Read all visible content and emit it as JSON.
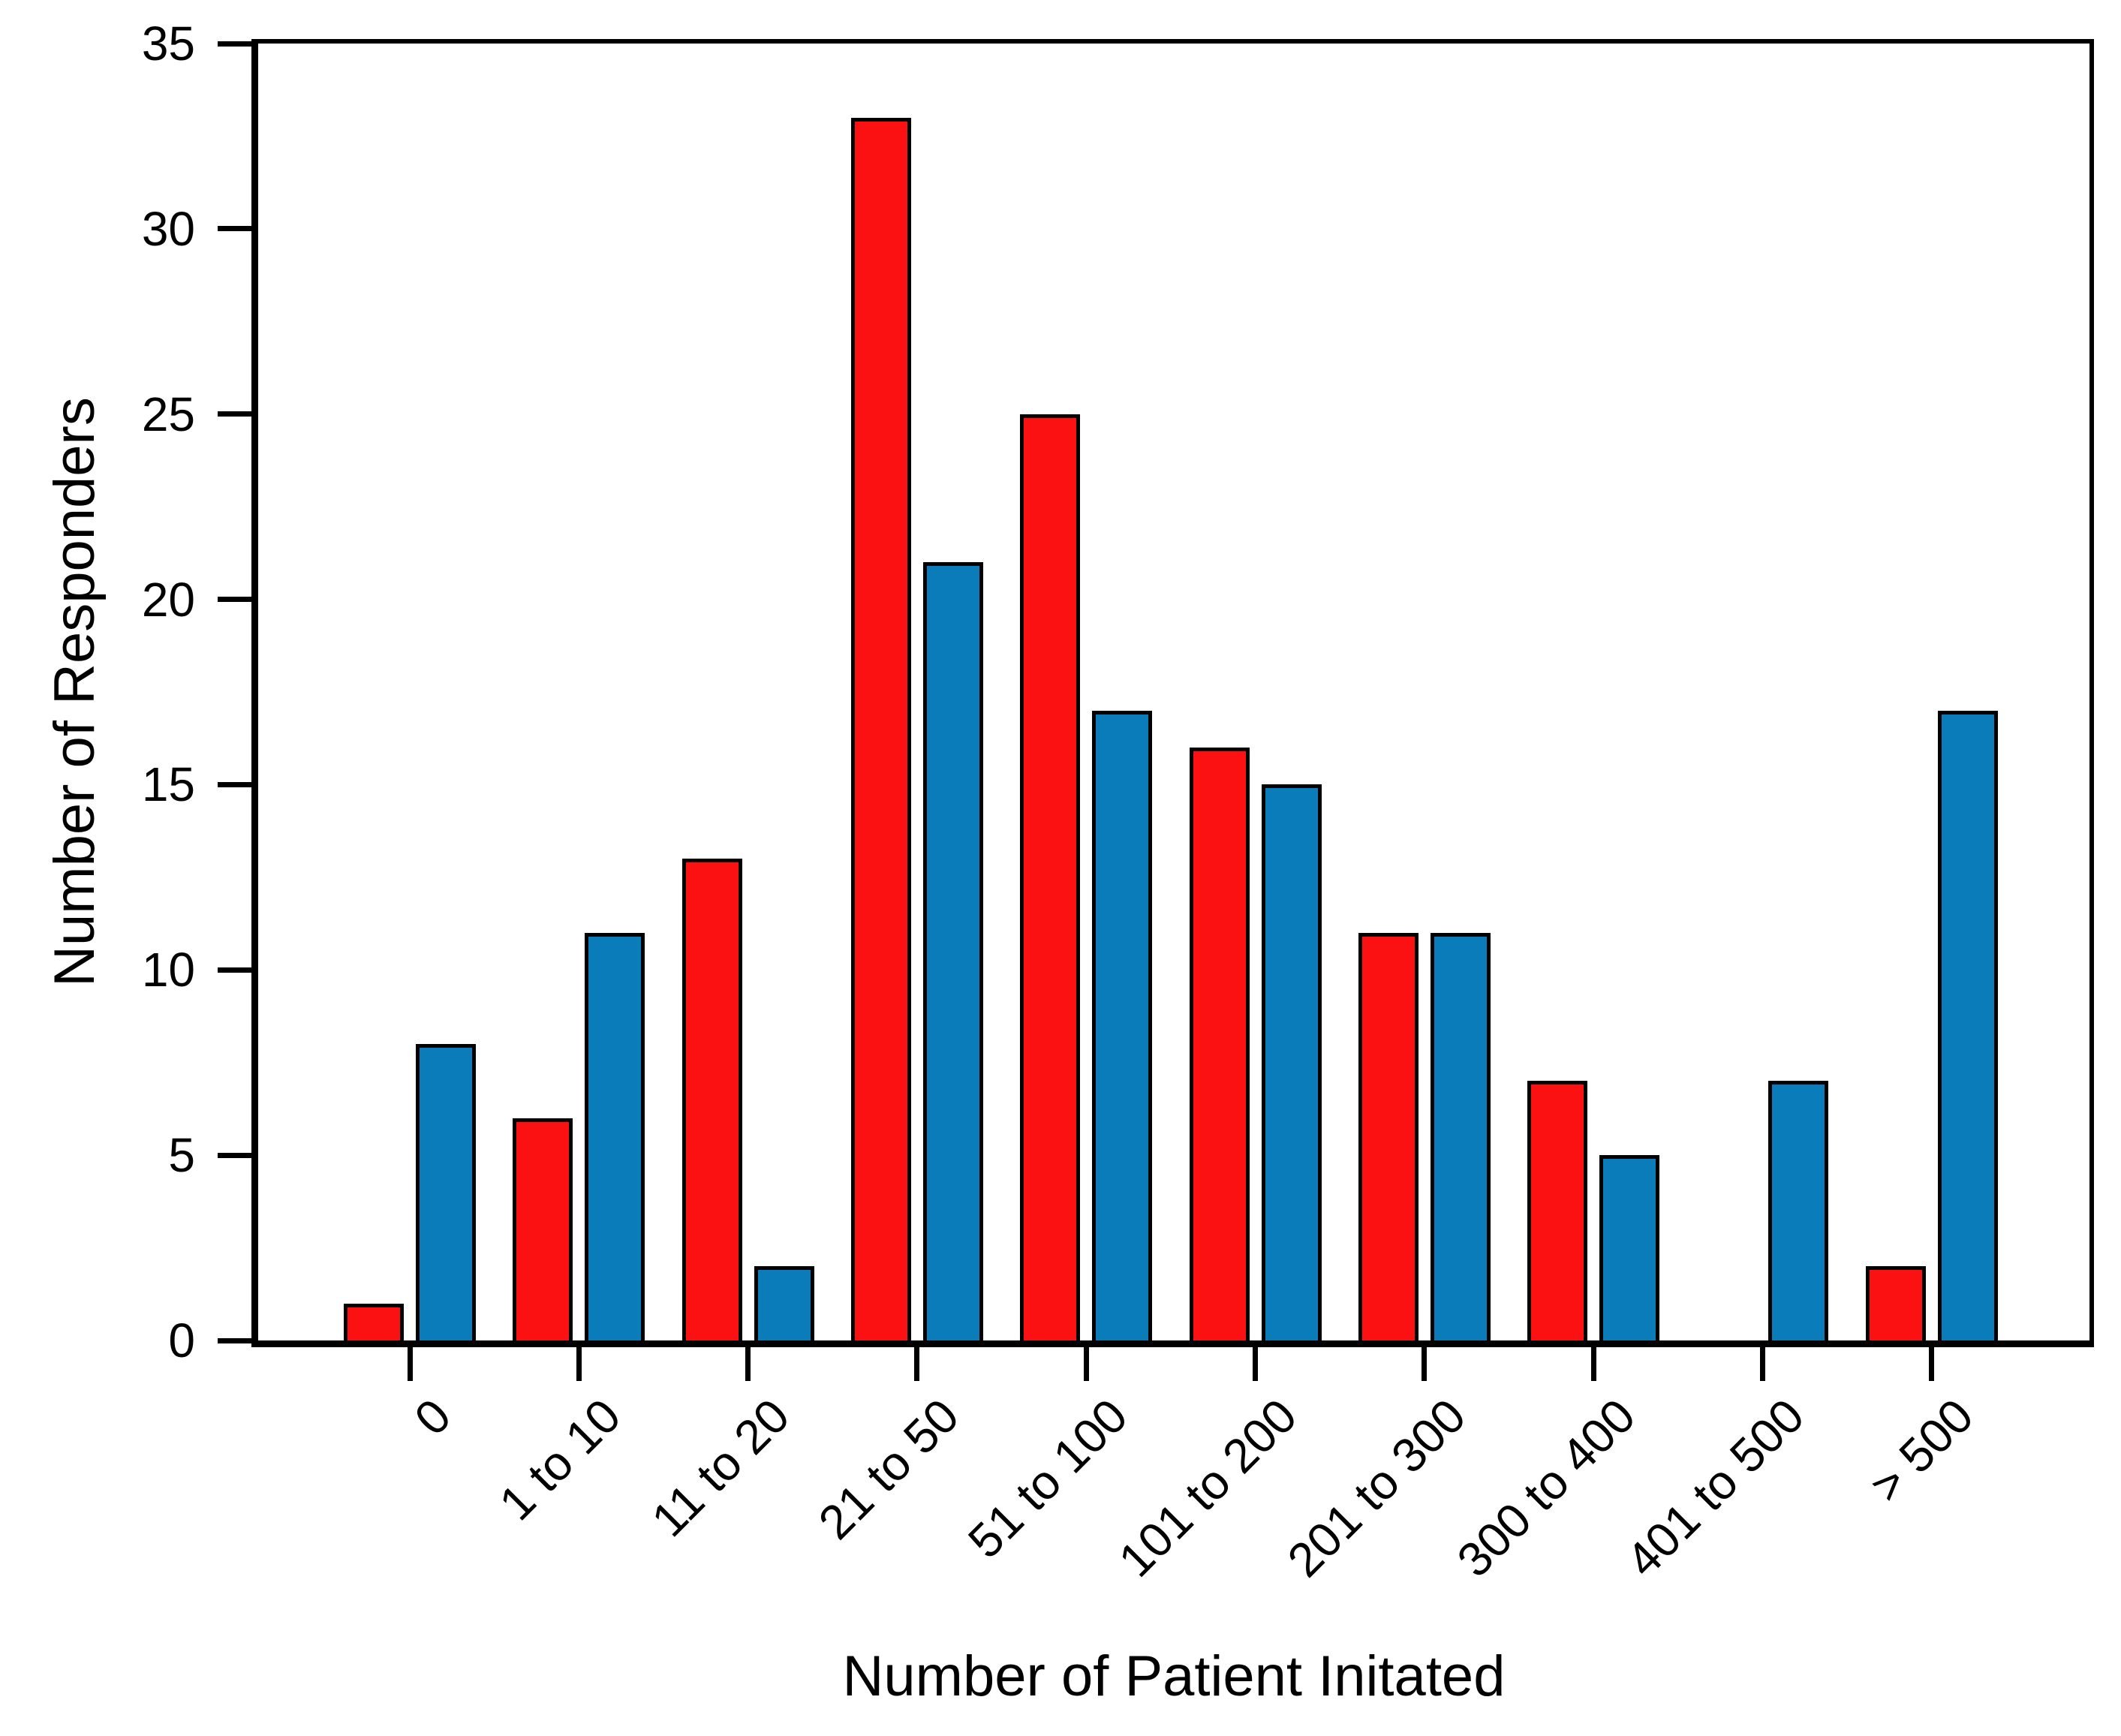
{
  "chart_data": {
    "type": "bar",
    "title": "",
    "xlabel": "Number of Patient Initated",
    "ylabel": "Number of Responders",
    "categories": [
      "0",
      "1 to 10",
      "11 to 20",
      "21 to 50",
      "51 to 100",
      "101 to 200",
      "201 to 300",
      "300 to 400",
      "401 to 500",
      "> 500"
    ],
    "series": [
      {
        "name": "red-series",
        "color": "#fb1111",
        "values": [
          1,
          6,
          13,
          33,
          25,
          16,
          11,
          7,
          0,
          2
        ]
      },
      {
        "name": "blue-series",
        "color": "#0b7cba",
        "values": [
          8,
          11,
          2,
          21,
          17,
          15,
          11,
          5,
          7,
          17
        ]
      }
    ],
    "ylim": [
      0,
      35
    ],
    "yticks": [
      0,
      5,
      10,
      15,
      20,
      25,
      30,
      35
    ],
    "grid": false,
    "legend": "none",
    "x_tick_label_rotation_deg": 45
  }
}
